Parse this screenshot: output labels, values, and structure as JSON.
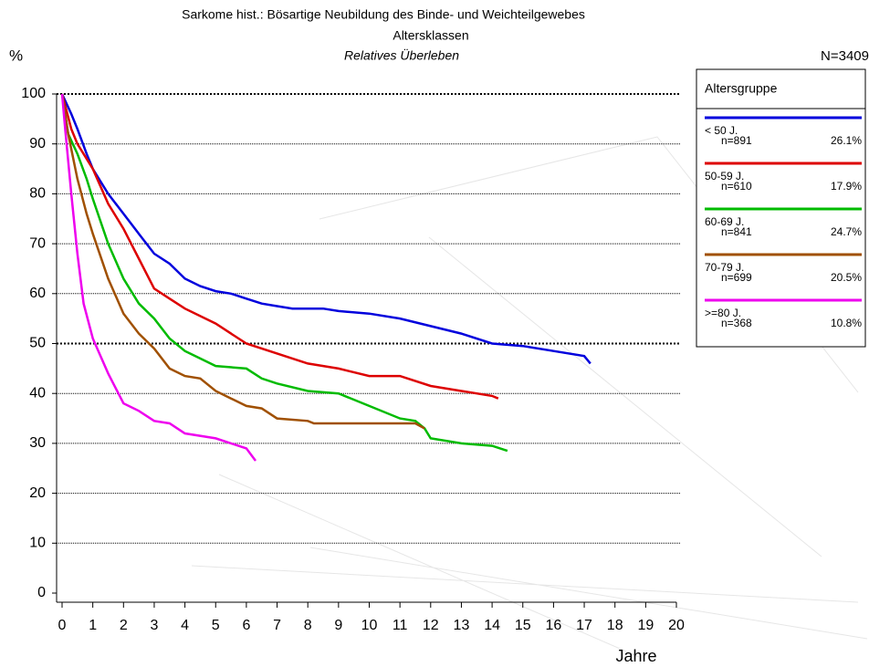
{
  "chart_data": {
    "type": "line",
    "title": "Sarkome hist.: Bösartige Neubildung des Binde- und Weichteilgewebes",
    "subtitle": "Altersklassen",
    "subtitle2": "Relatives Überleben",
    "y_label": "%",
    "x_label": "Jahre",
    "total_label": "N=3409",
    "legend_title": "Altersgruppe",
    "xlim": [
      0,
      20
    ],
    "xticks": [
      0,
      1,
      2,
      3,
      4,
      5,
      6,
      7,
      8,
      9,
      10,
      11,
      12,
      13,
      14,
      15,
      16,
      17,
      18,
      19,
      20
    ],
    "ylim": [
      0,
      100
    ],
    "yticks": [
      0,
      10,
      20,
      30,
      40,
      50,
      60,
      70,
      80,
      90,
      100
    ],
    "grid": true,
    "emphasized_gridlines": [
      50,
      100
    ],
    "series": [
      {
        "name": "< 50 J.",
        "color": "#0000dd",
        "n_label": "n=891",
        "share": 26.1,
        "share_label": "26.1%",
        "x": [
          0,
          0.3,
          0.5,
          0.8,
          1,
          1.5,
          2,
          2.5,
          3,
          3.5,
          4,
          4.5,
          5,
          5.5,
          6,
          6.5,
          7,
          7.5,
          8,
          8.5,
          9,
          10,
          11,
          12,
          13,
          14,
          15,
          16,
          17,
          17.2
        ],
        "values": [
          100,
          96,
          93,
          88,
          85,
          80,
          76,
          72,
          68,
          66,
          63,
          61.5,
          60.5,
          60,
          59,
          58,
          57.5,
          57,
          57,
          57,
          56.5,
          56,
          55,
          53.5,
          52,
          50,
          49.5,
          48.5,
          47.5,
          46
        ]
      },
      {
        "name": "50-59 J.",
        "color": "#dd0000",
        "n_label": "n=610",
        "share": 17.9,
        "share_label": "17.9%",
        "x": [
          0,
          0.3,
          0.5,
          1,
          1.5,
          2,
          2.5,
          3,
          3.5,
          4,
          5,
          5.5,
          6,
          7,
          8,
          9,
          10,
          11,
          12,
          13,
          14,
          14.2
        ],
        "values": [
          100,
          93,
          90,
          85,
          78,
          73,
          67,
          61,
          59,
          57,
          54,
          52,
          50,
          48,
          46,
          45,
          43.5,
          43.5,
          41.5,
          40.5,
          39.5,
          39
        ]
      },
      {
        "name": "60-69 J.",
        "color": "#00bb00",
        "n_label": "n=841",
        "share": 24.7,
        "share_label": "24.7%",
        "x": [
          0,
          0.2,
          0.5,
          0.8,
          1,
          1.5,
          2,
          2.5,
          3,
          3.5,
          4,
          4.5,
          5,
          6,
          6.5,
          7,
          8,
          9,
          10,
          11,
          11.5,
          11.8,
          12,
          13,
          14,
          14.5
        ],
        "values": [
          100,
          92,
          88,
          83,
          79,
          70,
          63,
          58,
          55,
          51,
          48.5,
          47,
          45.5,
          45,
          43,
          42,
          40.5,
          40,
          37.5,
          35,
          34.5,
          33,
          31,
          30,
          29.5,
          28.5
        ]
      },
      {
        "name": "70-79 J.",
        "color": "#a05000",
        "n_label": "n=699",
        "share": 20.5,
        "share_label": "20.5%",
        "x": [
          0,
          0.2,
          0.5,
          0.8,
          1,
          1.5,
          2,
          2.5,
          3,
          3.5,
          4,
          4.5,
          5,
          5.5,
          6,
          6.5,
          7,
          8,
          8.2,
          9,
          10,
          11,
          11.5,
          11.8
        ],
        "values": [
          100,
          92,
          83,
          76,
          72,
          63,
          56,
          52,
          49,
          45,
          43.5,
          43,
          40.5,
          39,
          37.5,
          37,
          35,
          34.5,
          34,
          34,
          34,
          34,
          34,
          33
        ]
      },
      {
        "name": ">=80 J.",
        "color": "#ee00ee",
        "n_label": "n=368",
        "share": 10.8,
        "share_label": "10.8%",
        "x": [
          0,
          0.1,
          0.3,
          0.5,
          0.7,
          1,
          1.5,
          2,
          2.5,
          3,
          3.5,
          4,
          5,
          5.5,
          6,
          6.3
        ],
        "values": [
          100,
          93,
          80,
          68,
          58,
          51,
          44,
          38,
          36.5,
          34.5,
          34,
          32,
          31,
          30,
          29,
          26.5
        ]
      }
    ]
  }
}
